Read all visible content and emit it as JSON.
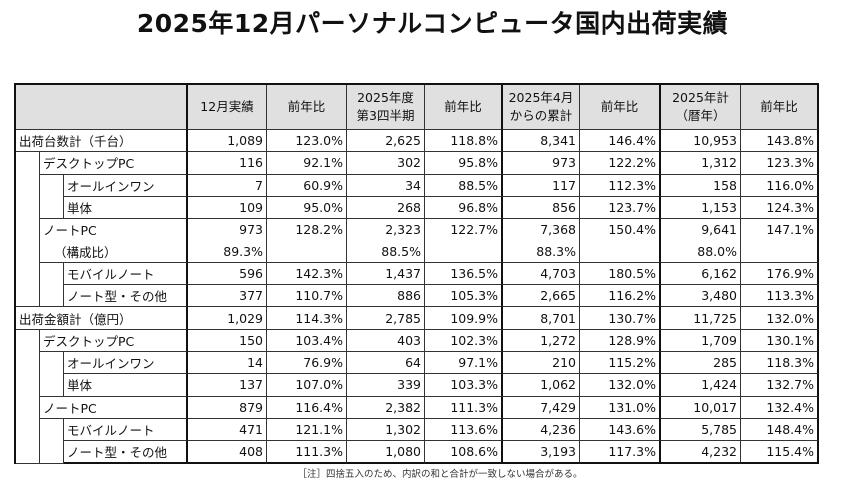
{
  "title": "2025年12月パーソナルコンピュータ国内出荷実績",
  "headers": [
    "12月実績",
    "前年比",
    "2025年度\n第3四半期",
    "前年比",
    "2025年4月\nからの累計",
    "前年比",
    "2025年計\n（暦年）",
    "前年比"
  ],
  "rows": [
    {
      "label": "出荷台数計（千台）",
      "level": 0,
      "values": [
        "1,089",
        "123.0%",
        "2,625",
        "118.8%",
        "8,341",
        "146.4%",
        "10,953",
        "143.8%"
      ]
    },
    {
      "label": "デスクトップPC",
      "level": 1,
      "values": [
        "116",
        "92.1%",
        "302",
        "95.8%",
        "973",
        "122.2%",
        "1,312",
        "123.3%"
      ]
    },
    {
      "label": "オールインワン",
      "level": 2,
      "values": [
        "7",
        "60.9%",
        "34",
        "88.5%",
        "117",
        "112.3%",
        "158",
        "116.0%"
      ]
    },
    {
      "label": "単体",
      "level": 2,
      "values": [
        "109",
        "95.0%",
        "268",
        "96.8%",
        "856",
        "123.7%",
        "1,153",
        "124.3%"
      ]
    },
    {
      "label": "ノートPC",
      "level": 1,
      "noBottom": true,
      "values": [
        "973",
        "128.2%",
        "2,323",
        "122.7%",
        "7,368",
        "150.4%",
        "9,641",
        "147.1%"
      ]
    },
    {
      "label": "（構成比）",
      "level": 1,
      "ratio": true,
      "values": [
        "89.3%",
        "",
        "88.5%",
        "",
        "88.3%",
        "",
        "88.0%",
        ""
      ]
    },
    {
      "label": "モバイルノート",
      "level": 2,
      "values": [
        "596",
        "142.3%",
        "1,437",
        "136.5%",
        "4,703",
        "180.5%",
        "6,162",
        "176.9%"
      ]
    },
    {
      "label": "ノート型・その他",
      "level": 2,
      "values": [
        "377",
        "110.7%",
        "886",
        "105.3%",
        "2,665",
        "116.2%",
        "3,480",
        "113.3%"
      ]
    },
    {
      "label": "出荷金額計（億円）",
      "level": 0,
      "values": [
        "1,029",
        "114.3%",
        "2,785",
        "109.9%",
        "8,701",
        "130.7%",
        "11,725",
        "132.0%"
      ]
    },
    {
      "label": "デスクトップPC",
      "level": 1,
      "values": [
        "150",
        "103.4%",
        "403",
        "102.3%",
        "1,272",
        "128.9%",
        "1,709",
        "130.1%"
      ]
    },
    {
      "label": "オールインワン",
      "level": 2,
      "values": [
        "14",
        "76.9%",
        "64",
        "97.1%",
        "210",
        "115.2%",
        "285",
        "118.3%"
      ]
    },
    {
      "label": "単体",
      "level": 2,
      "values": [
        "137",
        "107.0%",
        "339",
        "103.3%",
        "1,062",
        "132.0%",
        "1,424",
        "132.7%"
      ]
    },
    {
      "label": "ノートPC",
      "level": 1,
      "values": [
        "879",
        "116.4%",
        "2,382",
        "111.3%",
        "7,429",
        "131.0%",
        "10,017",
        "132.4%"
      ]
    },
    {
      "label": "モバイルノート",
      "level": 2,
      "values": [
        "471",
        "121.1%",
        "1,302",
        "113.6%",
        "4,236",
        "143.6%",
        "5,785",
        "148.4%"
      ]
    },
    {
      "label": "ノート型・その他",
      "level": 2,
      "values": [
        "408",
        "111.3%",
        "1,080",
        "108.6%",
        "3,193",
        "117.3%",
        "4,232",
        "115.4%"
      ]
    }
  ],
  "note": "［注］四捨五入のため、内訳の和と合計が一致しない場合がある。"
}
